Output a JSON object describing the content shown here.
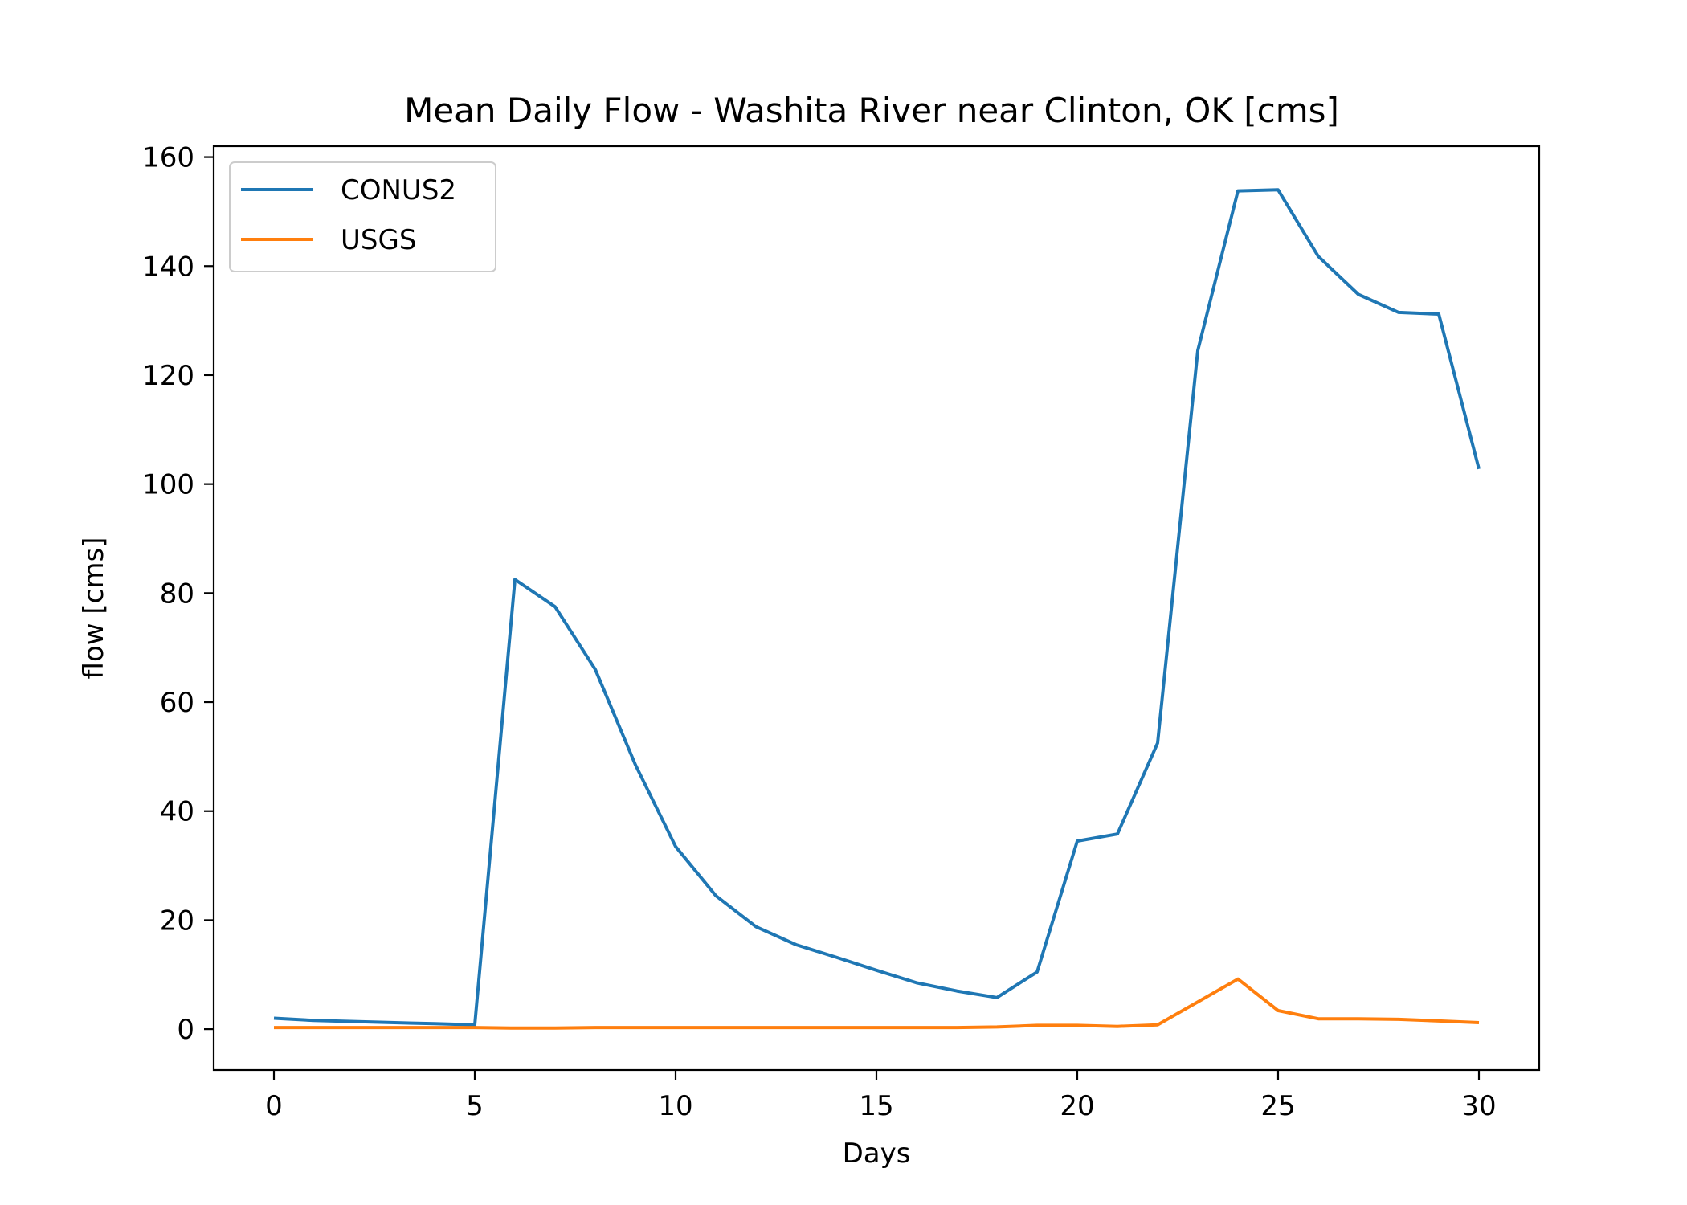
{
  "chart_data": {
    "type": "line",
    "title": "Mean Daily Flow - Washita River near Clinton, OK [cms]",
    "xlabel": "Days",
    "ylabel": "flow [cms]",
    "xlim": [
      -1.5,
      31.5
    ],
    "ylim": [
      -7.5,
      162
    ],
    "xticks": [
      0,
      5,
      10,
      15,
      20,
      25,
      30
    ],
    "yticks": [
      0,
      20,
      40,
      60,
      80,
      100,
      120,
      140,
      160
    ],
    "grid": false,
    "legend_position": "top-left",
    "x": [
      0,
      1,
      2,
      3,
      4,
      5,
      6,
      7,
      8,
      9,
      10,
      11,
      12,
      13,
      14,
      15,
      16,
      17,
      18,
      19,
      20,
      21,
      22,
      23,
      24,
      25,
      26,
      27,
      28,
      29,
      30
    ],
    "series": [
      {
        "name": "CONUS2",
        "color": "#1f77b4",
        "values": [
          2.0,
          1.6,
          1.4,
          1.2,
          1.0,
          0.8,
          82.5,
          77.5,
          66.0,
          48.5,
          33.5,
          24.5,
          18.8,
          15.5,
          13.2,
          10.8,
          8.5,
          7.0,
          5.8,
          10.5,
          34.5,
          35.8,
          52.5,
          124.5,
          153.8,
          154.0,
          141.8,
          134.8,
          131.5,
          131.2,
          102.8
        ]
      },
      {
        "name": "USGS",
        "color": "#ff7f0e",
        "values": [
          0.3,
          0.3,
          0.3,
          0.3,
          0.3,
          0.3,
          0.2,
          0.2,
          0.3,
          0.3,
          0.3,
          0.3,
          0.3,
          0.3,
          0.3,
          0.3,
          0.3,
          0.3,
          0.4,
          0.7,
          0.7,
          0.5,
          0.8,
          5.0,
          9.2,
          3.4,
          1.9,
          1.9,
          1.8,
          1.5,
          1.2
        ]
      }
    ]
  }
}
